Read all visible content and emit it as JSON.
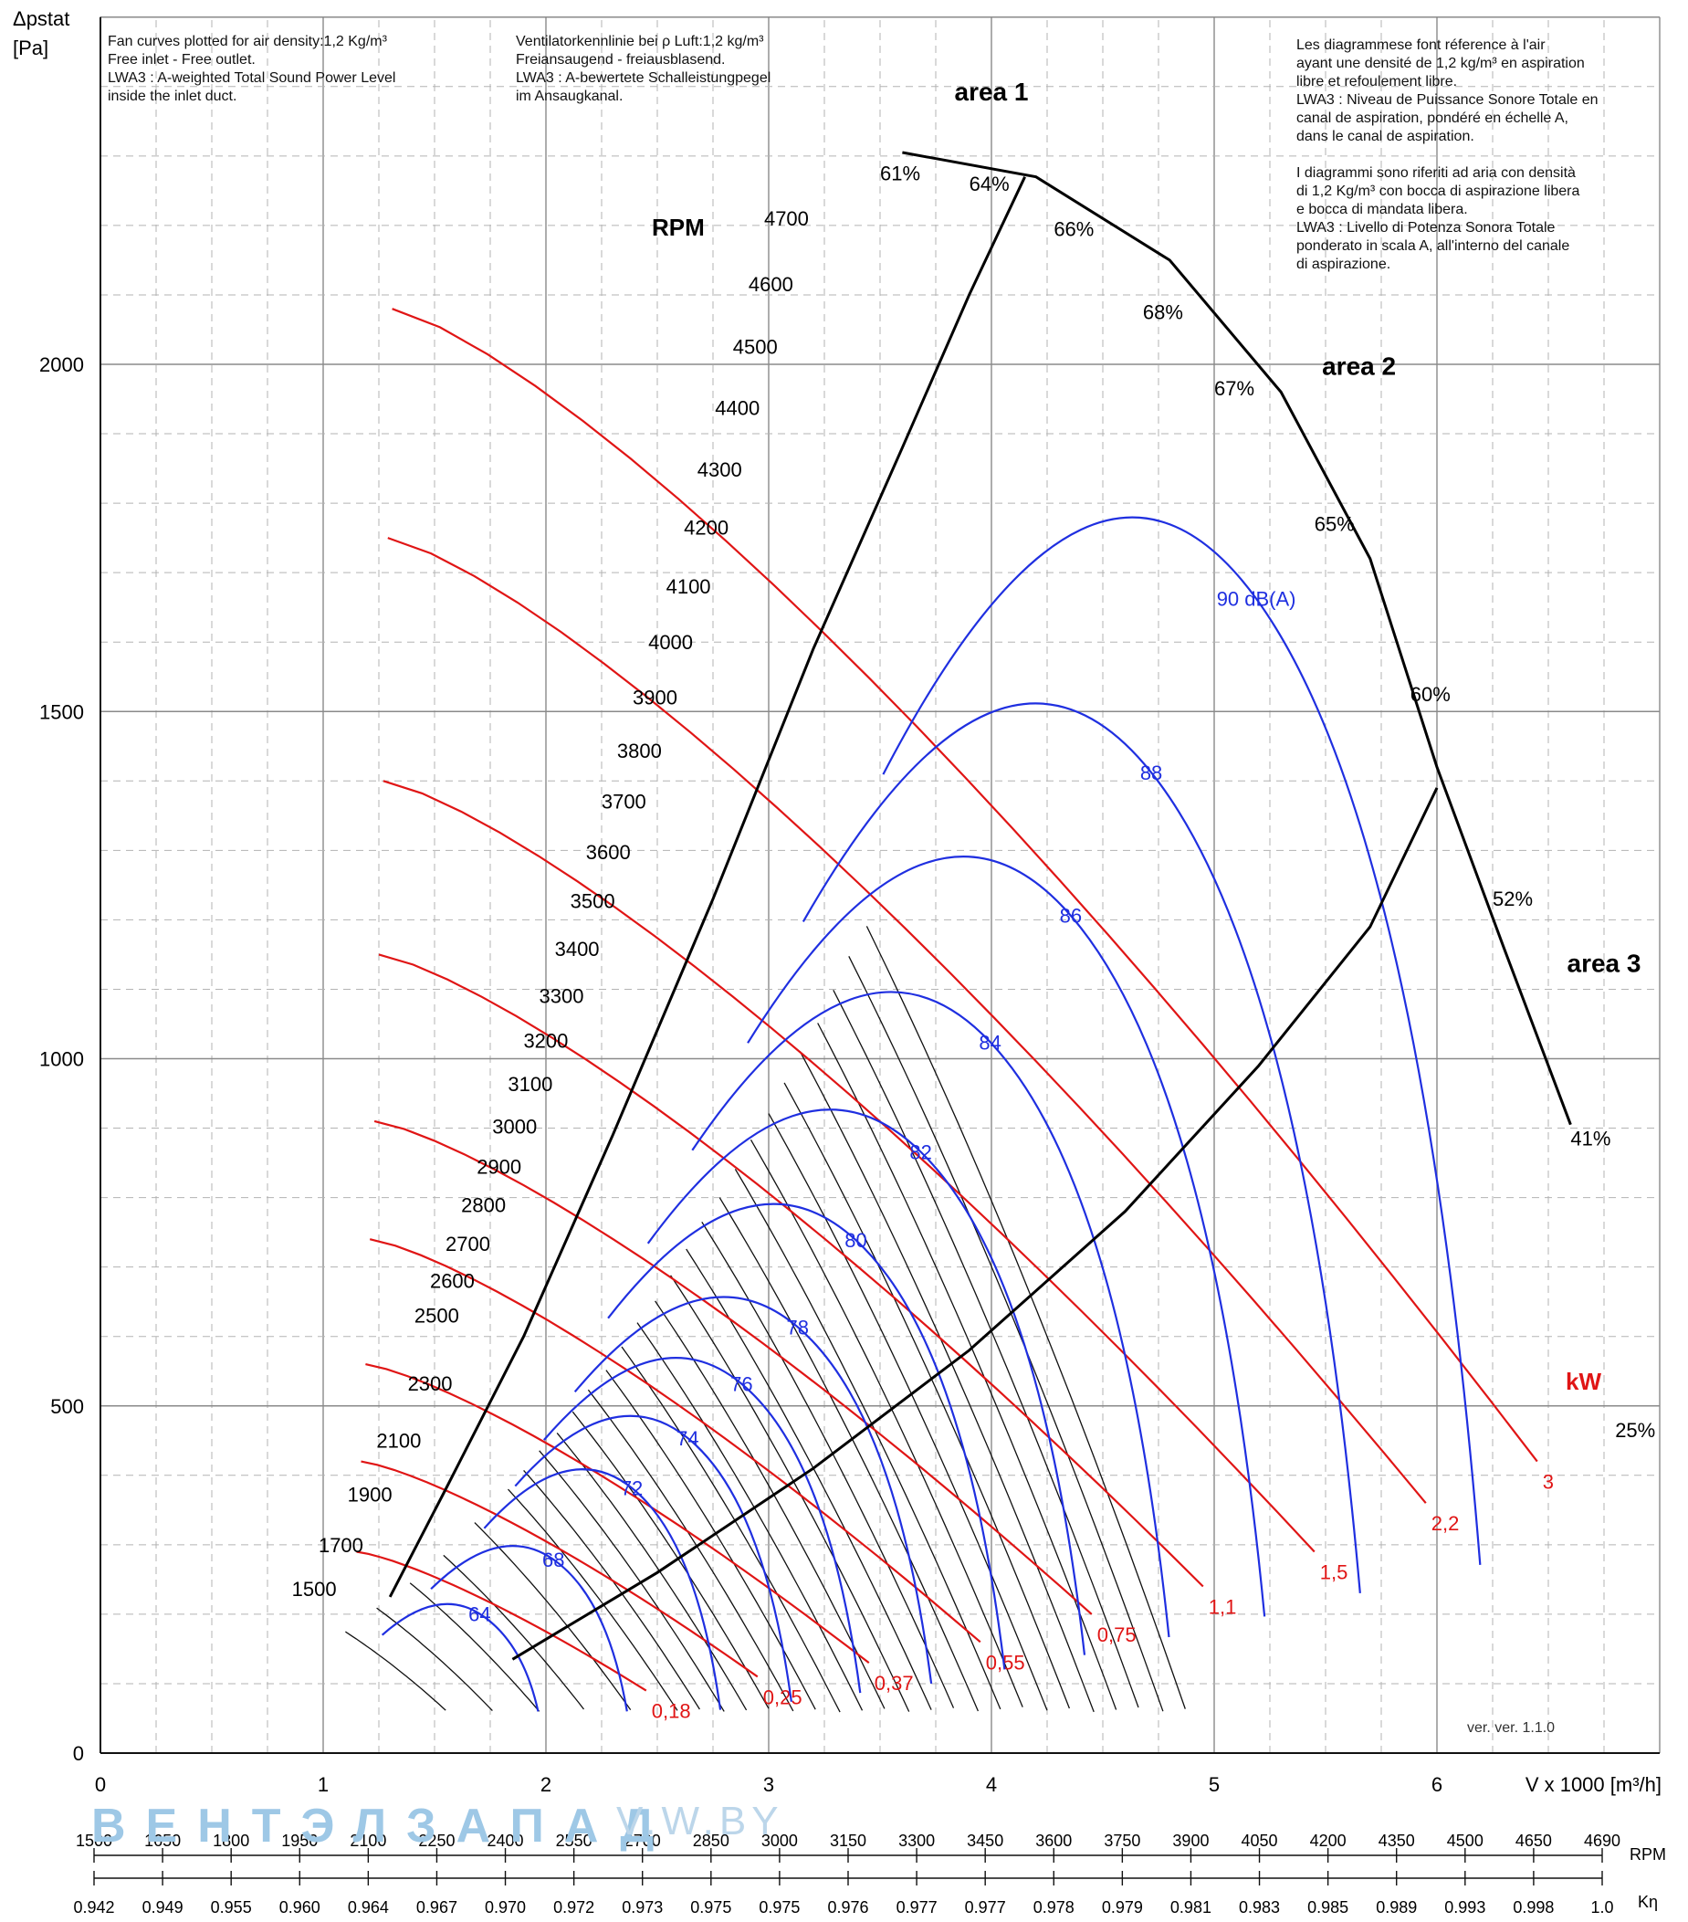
{
  "notes": {
    "english": "Fan curves plotted for air density:1,2 Kg/m³\nFree inlet - Free outlet.\nLWA3 : A-weighted Total Sound Power Level\ninside the inlet duct.",
    "german": "Ventilatorkennlinie bei ρ Luft:1,2 kg/m³\nFreiansaugend - freiausblasend.\nLWA3 : A-bewertete Schalleistungpegel\nim Ansaugkanal.",
    "french_italian": "Les diagrammese font réference à l'air\nayant une densité de 1,2 kg/m³ en aspiration\nlibre et refoulement libre.\nLWA3 : Niveau de Puissance Sonore Totale en\ncanal de aspiration, pondéré en échelle A,\ndans le canal de aspiration.\n\nI diagrammi sono riferiti ad aria con densità\ndi 1,2 Kg/m³ con bocca di aspirazione libera\ne bocca di mandata libera.\nLWA3 : Livello di Potenza Sonora Totale\nponderato in scala A, all'interno del canale\ndi aspirazione."
  },
  "watermark": "ВЕНТЭЛЗАПАД",
  "watermark2": "V.W.BY",
  "version": "ver. ver. 1.1.0",
  "colors": {
    "rpm_curve": "#111111",
    "noise": "#1f2fe0",
    "power": "#e01515",
    "axis": "#111111",
    "grid": "#999999"
  },
  "chart_data": {
    "type": "line",
    "title": "",
    "ylabel": "Δpstat\n[Pa]",
    "xlabel": "V x 1000 [m³/h]",
    "xlim": [
      0,
      7
    ],
    "ylim": [
      0,
      2500
    ],
    "x_ticks": [
      0,
      1,
      2,
      3,
      4,
      5,
      6
    ],
    "y_ticks": [
      0,
      500,
      1000,
      1500,
      2000
    ],
    "grid": true,
    "rpm_label": "RPM",
    "rpm_curves": [
      {
        "rpm": 1500,
        "vmin": 1.1,
        "vmax": 1.55
      },
      {
        "rpm": 1700,
        "vmin": 1.24,
        "vmax": 1.76
      },
      {
        "rpm": 1900,
        "vmin": 1.39,
        "vmax": 1.97
      },
      {
        "rpm": 2100,
        "vmin": 1.54,
        "vmax": 2.17
      },
      {
        "rpm": 2300,
        "vmin": 1.68,
        "vmax": 2.38
      },
      {
        "rpm": 2500,
        "vmin": 1.83,
        "vmax": 2.59
      },
      {
        "rpm": 2600,
        "vmin": 1.9,
        "vmax": 2.69
      },
      {
        "rpm": 2700,
        "vmin": 1.97,
        "vmax": 2.8
      },
      {
        "rpm": 2800,
        "vmin": 2.05,
        "vmax": 2.9
      },
      {
        "rpm": 2900,
        "vmin": 2.12,
        "vmax": 3.0
      },
      {
        "rpm": 3000,
        "vmin": 2.19,
        "vmax": 3.11
      },
      {
        "rpm": 3100,
        "vmin": 2.27,
        "vmax": 3.21
      },
      {
        "rpm": 3200,
        "vmin": 2.34,
        "vmax": 3.32
      },
      {
        "rpm": 3300,
        "vmin": 2.41,
        "vmax": 3.42
      },
      {
        "rpm": 3400,
        "vmin": 2.49,
        "vmax": 3.52
      },
      {
        "rpm": 3500,
        "vmin": 2.56,
        "vmax": 3.63
      },
      {
        "rpm": 3600,
        "vmin": 2.63,
        "vmax": 3.73
      },
      {
        "rpm": 3700,
        "vmin": 2.7,
        "vmax": 3.83
      },
      {
        "rpm": 3800,
        "vmin": 2.78,
        "vmax": 3.94
      },
      {
        "rpm": 3900,
        "vmin": 2.85,
        "vmax": 4.04
      },
      {
        "rpm": 4000,
        "vmin": 2.92,
        "vmax": 4.14
      },
      {
        "rpm": 4100,
        "vmin": 3.0,
        "vmax": 4.25
      },
      {
        "rpm": 4200,
        "vmin": 3.07,
        "vmax": 4.35
      },
      {
        "rpm": 4300,
        "vmin": 3.14,
        "vmax": 4.46
      },
      {
        "rpm": 4400,
        "vmin": 3.22,
        "vmax": 4.56
      },
      {
        "rpm": 4500,
        "vmin": 3.29,
        "vmax": 4.66
      },
      {
        "rpm": 4600,
        "vmin": 3.36,
        "vmax": 4.77
      },
      {
        "rpm": 4700,
        "vmin": 3.44,
        "vmax": 4.87
      }
    ],
    "rpm_labels": [
      {
        "text": "4700",
        "v": 3.18,
        "p": 2200
      },
      {
        "text": "4600",
        "v": 3.11,
        "p": 2105
      },
      {
        "text": "4500",
        "v": 3.04,
        "p": 2015
      },
      {
        "text": "4400",
        "v": 2.96,
        "p": 1927
      },
      {
        "text": "4300",
        "v": 2.88,
        "p": 1838
      },
      {
        "text": "4200",
        "v": 2.82,
        "p": 1755
      },
      {
        "text": "4100",
        "v": 2.74,
        "p": 1670
      },
      {
        "text": "4000",
        "v": 2.66,
        "p": 1590
      },
      {
        "text": "3900",
        "v": 2.59,
        "p": 1510
      },
      {
        "text": "3800",
        "v": 2.52,
        "p": 1433
      },
      {
        "text": "3700",
        "v": 2.45,
        "p": 1360
      },
      {
        "text": "3600",
        "v": 2.38,
        "p": 1287
      },
      {
        "text": "3500",
        "v": 2.31,
        "p": 1217
      },
      {
        "text": "3400",
        "v": 2.24,
        "p": 1148
      },
      {
        "text": "3300",
        "v": 2.17,
        "p": 1080
      },
      {
        "text": "3200",
        "v": 2.1,
        "p": 1016
      },
      {
        "text": "3100",
        "v": 2.03,
        "p": 953
      },
      {
        "text": "3000",
        "v": 1.96,
        "p": 892
      },
      {
        "text": "2900",
        "v": 1.89,
        "p": 834
      },
      {
        "text": "2800",
        "v": 1.82,
        "p": 779
      },
      {
        "text": "2700",
        "v": 1.75,
        "p": 723
      },
      {
        "text": "2600",
        "v": 1.68,
        "p": 670
      },
      {
        "text": "2500",
        "v": 1.61,
        "p": 620
      },
      {
        "text": "2300",
        "v": 1.58,
        "p": 522
      },
      {
        "text": "2100",
        "v": 1.44,
        "p": 440
      },
      {
        "text": "1900",
        "v": 1.31,
        "p": 362
      },
      {
        "text": "1700",
        "v": 1.18,
        "p": 289
      },
      {
        "text": "1500",
        "v": 1.06,
        "p": 226
      }
    ],
    "efficiency_labels": [
      {
        "text": "61%",
        "v": 3.5,
        "p": 2265
      },
      {
        "text": "64%",
        "v": 3.9,
        "p": 2250
      },
      {
        "text": "66%",
        "v": 4.28,
        "p": 2185
      },
      {
        "text": "68%",
        "v": 4.68,
        "p": 2065
      },
      {
        "text": "67%",
        "v": 5.0,
        "p": 1955
      },
      {
        "text": "65%",
        "v": 5.45,
        "p": 1760
      },
      {
        "text": "60%",
        "v": 5.88,
        "p": 1515
      },
      {
        "text": "52%",
        "v": 6.25,
        "p": 1220
      },
      {
        "text": "41%",
        "v": 6.6,
        "p": 875
      },
      {
        "text": "25%",
        "v": 6.8,
        "p": 455
      }
    ],
    "areas": [
      {
        "text": "area 1",
        "v": 4.0,
        "p": 2380
      },
      {
        "text": "area 2",
        "v": 5.65,
        "p": 1985
      },
      {
        "text": "area 3",
        "v": 6.75,
        "p": 1125
      }
    ],
    "area_boundaries": [
      {
        "name": "boundary-1-2",
        "points": [
          [
            1.3,
            225
          ],
          [
            1.55,
            380
          ],
          [
            1.9,
            600
          ],
          [
            2.3,
            890
          ],
          [
            2.75,
            1230
          ],
          [
            3.2,
            1590
          ],
          [
            3.6,
            1880
          ],
          [
            3.9,
            2100
          ],
          [
            4.15,
            2270
          ]
        ]
      },
      {
        "name": "boundary-2-3",
        "points": [
          [
            1.85,
            135
          ],
          [
            2.5,
            260
          ],
          [
            3.2,
            410
          ],
          [
            3.9,
            580
          ],
          [
            4.6,
            780
          ],
          [
            5.2,
            990
          ],
          [
            5.7,
            1190
          ],
          [
            6.0,
            1390
          ]
        ]
      },
      {
        "name": "efficiency-envelope",
        "points": [
          [
            3.6,
            2305
          ],
          [
            4.2,
            2270
          ],
          [
            4.8,
            2150
          ],
          [
            5.3,
            1960
          ],
          [
            5.7,
            1720
          ],
          [
            6.0,
            1420
          ],
          [
            6.3,
            1160
          ],
          [
            6.6,
            905
          ]
        ]
      }
    ],
    "noise_label_suffix": " dB(A)",
    "noise_curves": [
      {
        "db": "64",
        "v": 1.58,
        "p": 218
      },
      {
        "db": "68",
        "v": 1.88,
        "p": 303
      },
      {
        "db": "72",
        "v": 2.2,
        "p": 415
      },
      {
        "db": "74",
        "v": 2.42,
        "p": 493
      },
      {
        "db": "76",
        "v": 2.63,
        "p": 578
      },
      {
        "db": "78",
        "v": 2.85,
        "p": 667
      },
      {
        "db": "80",
        "v": 3.08,
        "p": 803
      },
      {
        "db": "82",
        "v": 3.34,
        "p": 941
      },
      {
        "db": "84",
        "v": 3.62,
        "p": 1113
      },
      {
        "db": "86",
        "v": 3.95,
        "p": 1311
      },
      {
        "db": "88",
        "v": 4.28,
        "p": 1535
      },
      {
        "db": "90",
        "v": 4.72,
        "p": 1807
      }
    ],
    "power_label": "kW",
    "power_curves": [
      {
        "kw": "0,18",
        "p0": 290,
        "pmax": 90
      },
      {
        "kw": "0,25",
        "p0": 420,
        "pmax": 110
      },
      {
        "kw": "0,37",
        "p0": 560,
        "pmax": 130
      },
      {
        "kw": "0,55",
        "p0": 740,
        "pmax": 160
      },
      {
        "kw": "0,75",
        "p0": 910,
        "pmax": 200
      },
      {
        "kw": "1,1",
        "p0": 1150,
        "pmax": 240
      },
      {
        "kw": "1,5",
        "p0": 1400,
        "pmax": 290
      },
      {
        "kw": "2,2",
        "p0": 1750,
        "pmax": 360
      },
      {
        "kw": "3",
        "p0": 2080,
        "pmax": 420
      }
    ],
    "rpm_scale": {
      "label": "RPM",
      "ticks": [
        "1500",
        "1650",
        "1800",
        "1950",
        "2100",
        "2250",
        "2400",
        "2550",
        "2700",
        "2850",
        "3000",
        "3150",
        "3300",
        "3450",
        "3600",
        "3750",
        "3900",
        "4050",
        "4200",
        "4350",
        "4500",
        "4650",
        "4690"
      ]
    },
    "k_scale": {
      "label": "Kη",
      "ticks": [
        "0.942",
        "0.949",
        "0.955",
        "0.960",
        "0.964",
        "0.967",
        "0.970",
        "0.972",
        "0.973",
        "0.975",
        "0.975",
        "0.976",
        "0.977",
        "0.977",
        "0.978",
        "0.979",
        "0.981",
        "0.983",
        "0.985",
        "0.989",
        "0.993",
        "0.998",
        "1.0"
      ]
    }
  }
}
